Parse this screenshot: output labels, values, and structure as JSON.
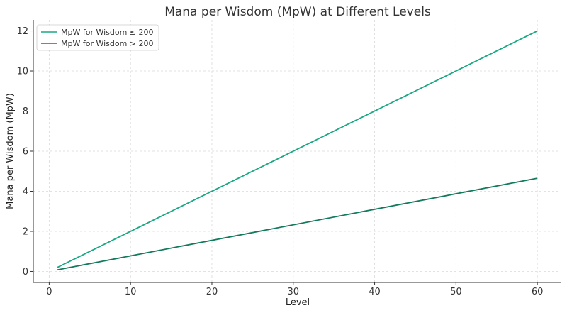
{
  "chart_data": {
    "type": "line",
    "title": "Mana per Wisdom (MpW) at Different Levels",
    "xlabel": "Level",
    "ylabel": "Mana per Wisdom (MpW)",
    "xlim": [
      -1.95,
      62.95
    ],
    "ylim": [
      -0.55,
      12.55
    ],
    "xticks": [
      0,
      10,
      20,
      30,
      40,
      50,
      60
    ],
    "yticks": [
      0,
      2,
      4,
      6,
      8,
      10,
      12
    ],
    "grid": true,
    "legend_position": "top-left",
    "series": [
      {
        "name": "MpW for Wisdom ≤ 200",
        "color": "#1ba784",
        "x": [
          1,
          60
        ],
        "values": [
          0.2,
          12.0
        ]
      },
      {
        "name": "MpW for Wisdom > 200",
        "color": "#137a5e",
        "x": [
          1,
          60
        ],
        "values": [
          0.08,
          4.65
        ]
      }
    ]
  }
}
